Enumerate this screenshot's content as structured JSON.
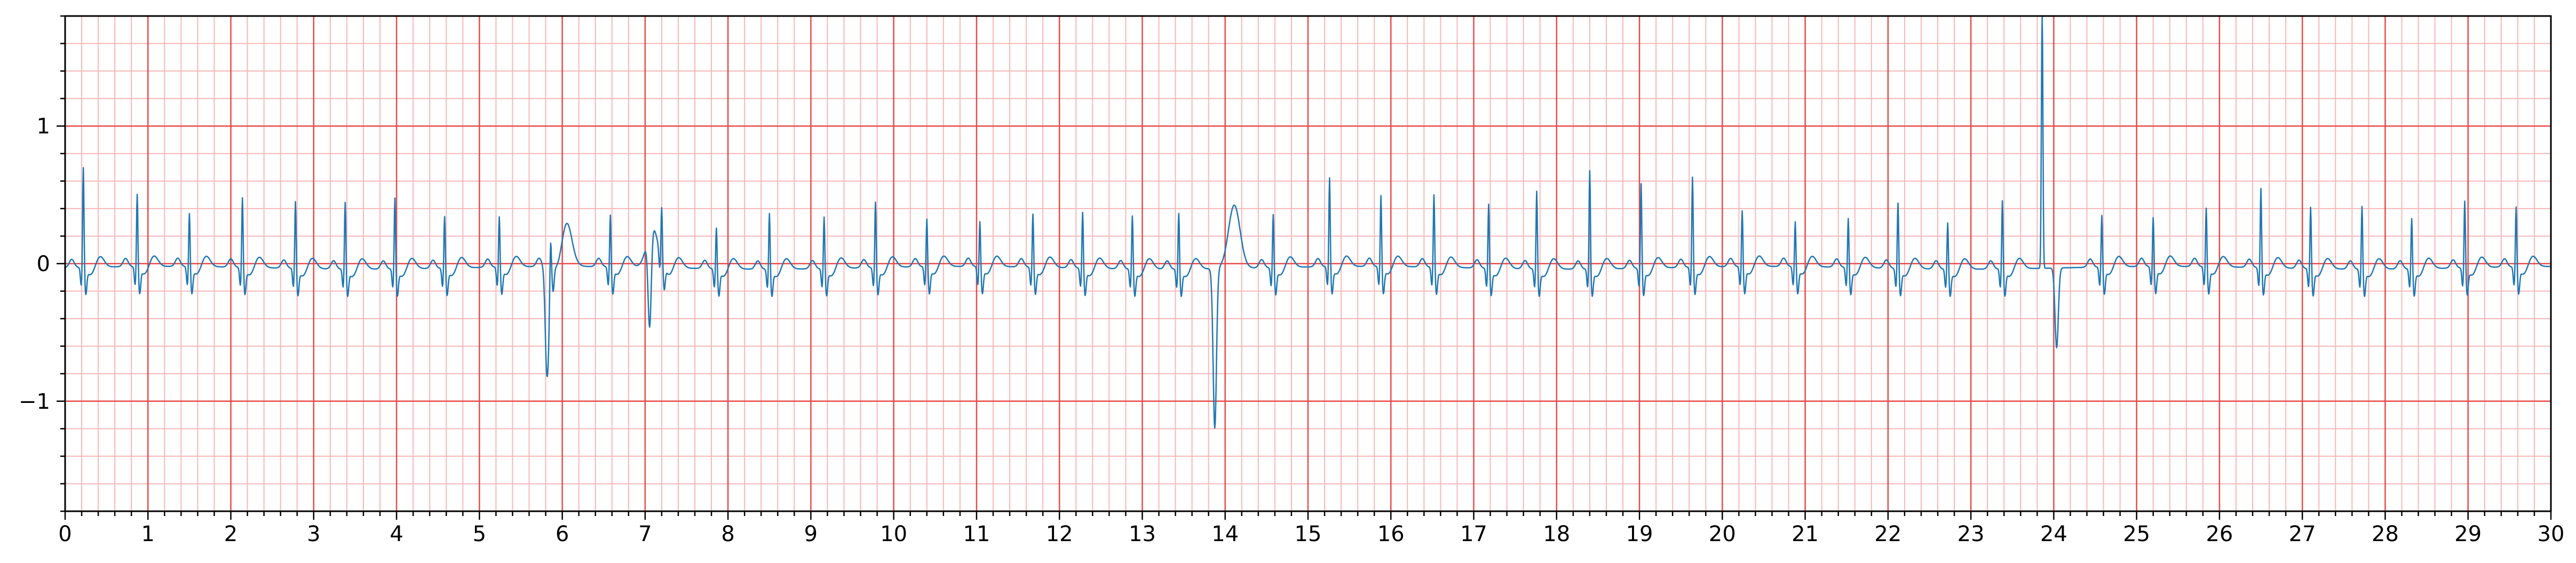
{
  "chart_data": {
    "type": "line",
    "title": "",
    "xlabel": "",
    "ylabel": "",
    "xlim": [
      0,
      30
    ],
    "ylim": [
      -1.8,
      1.8
    ],
    "grid": true,
    "x_ticks": [
      0,
      1,
      2,
      3,
      4,
      5,
      6,
      7,
      8,
      9,
      10,
      11,
      12,
      13,
      14,
      15,
      16,
      17,
      18,
      19,
      20,
      21,
      22,
      23,
      24,
      25,
      26,
      27,
      28,
      29,
      30
    ],
    "x_tick_labels": [
      "0",
      "1",
      "2",
      "3",
      "4",
      "5",
      "6",
      "7",
      "8",
      "9",
      "10",
      "11",
      "12",
      "13",
      "14",
      "15",
      "16",
      "17",
      "18",
      "19",
      "20",
      "21",
      "22",
      "23",
      "24",
      "25",
      "26",
      "27",
      "28",
      "29",
      "30"
    ],
    "y_ticks": [
      -1,
      0,
      1
    ],
    "y_tick_labels": [
      "−1",
      "0",
      "1"
    ],
    "colors": {
      "signal": "#1f77b4",
      "major_grid": "#e84a4a",
      "minor_grid": "#f8b7b7",
      "axes": "#000000"
    },
    "beats_x": [
      0.22,
      0.87,
      1.5,
      2.14,
      2.78,
      3.38,
      3.98,
      4.58,
      5.24,
      5.86,
      6.58,
      7.2,
      7.86,
      8.5,
      9.16,
      9.78,
      10.4,
      11.04,
      11.68,
      12.28,
      12.88,
      13.44,
      14.58,
      15.26,
      15.88,
      16.52,
      17.18,
      17.76,
      18.4,
      19.02,
      19.64,
      20.24,
      20.88,
      21.52,
      22.12,
      22.72,
      23.38,
      24.58,
      25.2,
      25.84,
      26.5,
      27.1,
      27.72,
      28.32,
      28.96,
      29.58
    ],
    "beats_amp": [
      0.7,
      0.5,
      0.36,
      0.48,
      0.46,
      0.46,
      0.49,
      0.35,
      0.34,
      0.2,
      0.35,
      0.33,
      0.27,
      0.38,
      0.35,
      0.45,
      0.32,
      0.3,
      0.36,
      0.38,
      0.36,
      0.38,
      0.36,
      0.62,
      0.49,
      0.5,
      0.44,
      0.54,
      0.69,
      0.59,
      0.63,
      0.38,
      0.3,
      0.33,
      0.45,
      0.31,
      0.47,
      0.35,
      0.33,
      0.4,
      0.55,
      0.42,
      0.43,
      0.34,
      0.46,
      0.41
    ],
    "ectopic_events": [
      {
        "x": 5.8,
        "min": -0.78,
        "max": 0.05
      },
      {
        "x": 6.0,
        "min": -0.05,
        "max": 0.24
      },
      {
        "x": 7.04,
        "min": -0.74,
        "max": 0.28
      },
      {
        "x": 13.86,
        "min": -1.16,
        "max": 0.1
      },
      {
        "x": 14.06,
        "min": -0.05,
        "max": 0.46
      },
      {
        "x": 23.86,
        "min": -0.1,
        "max": 1.8
      },
      {
        "x": 24.02,
        "min": -0.58,
        "max": 0.0
      }
    ]
  }
}
